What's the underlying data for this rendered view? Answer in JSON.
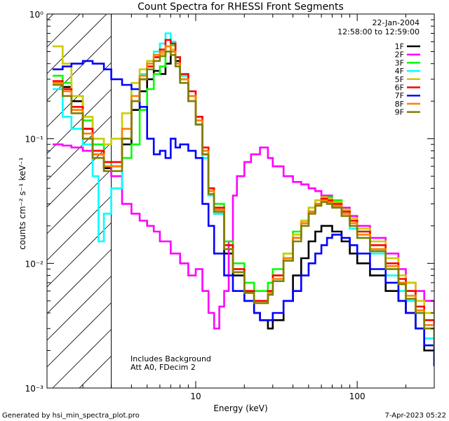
{
  "chart_data": {
    "type": "line",
    "title": "Count Spectra for RHESSI Front Segments",
    "xlabel": "Energy (keV)",
    "ylabel": "counts cm⁻² s⁻¹ keV⁻¹",
    "xscale": "log",
    "yscale": "log",
    "xlim": [
      1.2,
      300
    ],
    "ylim": [
      0.001,
      1
    ],
    "xticks": [
      {
        "value": 10,
        "label": "10"
      },
      {
        "value": 100,
        "label": "100"
      }
    ],
    "yticks": [
      {
        "value": 1,
        "label": "10⁰"
      },
      {
        "value": 0.1,
        "label": "10⁻¹"
      },
      {
        "value": 0.01,
        "label": "10⁻²"
      },
      {
        "value": 0.001,
        "label": "10⁻³"
      }
    ],
    "date_text": "22-Jan-2004",
    "time_text": "12:58:00 to 12:59:00",
    "shaded_region_keV": [
      1.2,
      3
    ],
    "annotations": [
      "Includes Background",
      "Att A0, FDecim 2"
    ],
    "series": [
      {
        "name": "1F",
        "color": "#000000",
        "x": [
          1.3,
          1.5,
          1.7,
          2.0,
          2.3,
          2.7,
          3.0,
          3.5,
          4.0,
          4.5,
          5.0,
          5.5,
          6.0,
          6.5,
          7.0,
          7.5,
          8.0,
          9.0,
          10,
          11,
          12,
          13,
          15,
          17,
          20,
          23,
          25,
          28,
          30,
          35,
          40,
          45,
          50,
          55,
          60,
          65,
          70,
          80,
          90,
          100,
          120,
          150,
          180,
          200,
          230,
          260,
          300
        ],
        "y": [
          0.28,
          0.26,
          0.2,
          0.12,
          0.075,
          0.058,
          0.06,
          0.09,
          0.17,
          0.24,
          0.3,
          0.35,
          0.33,
          0.4,
          0.5,
          0.42,
          0.3,
          0.2,
          0.13,
          0.075,
          0.035,
          0.025,
          0.012,
          0.008,
          0.005,
          0.004,
          0.0035,
          0.003,
          0.0035,
          0.005,
          0.008,
          0.011,
          0.015,
          0.018,
          0.02,
          0.02,
          0.018,
          0.015,
          0.012,
          0.01,
          0.008,
          0.006,
          0.005,
          0.004,
          0.003,
          0.002,
          0.0015
        ]
      },
      {
        "name": "2F",
        "color": "#ff00ff",
        "x": [
          1.3,
          1.5,
          1.7,
          2.0,
          2.3,
          2.7,
          3.0,
          3.5,
          4.0,
          4.5,
          5.0,
          5.5,
          6.0,
          7.0,
          8.0,
          9.0,
          10,
          11,
          12,
          13,
          14,
          15,
          16,
          17,
          18,
          20,
          22,
          25,
          28,
          30,
          35,
          40,
          45,
          50,
          55,
          60,
          70,
          80,
          90,
          100,
          120,
          150,
          180,
          200,
          230,
          260,
          300
        ],
        "y": [
          0.09,
          0.088,
          0.085,
          0.08,
          0.07,
          0.06,
          0.05,
          0.03,
          0.025,
          0.022,
          0.02,
          0.018,
          0.015,
          0.012,
          0.01,
          0.008,
          0.009,
          0.006,
          0.004,
          0.003,
          0.0045,
          0.006,
          0.015,
          0.035,
          0.05,
          0.065,
          0.075,
          0.085,
          0.07,
          0.06,
          0.05,
          0.045,
          0.043,
          0.04,
          0.038,
          0.035,
          0.032,
          0.028,
          0.024,
          0.02,
          0.016,
          0.012,
          0.009,
          0.007,
          0.006,
          0.005,
          0.004
        ]
      },
      {
        "name": "3F",
        "color": "#00ff00",
        "x": [
          1.3,
          1.5,
          1.7,
          2.0,
          2.3,
          2.7,
          3.0,
          3.5,
          4.0,
          4.5,
          5.0,
          5.5,
          6.0,
          6.5,
          7.0,
          7.5,
          8.0,
          9.0,
          10,
          11,
          12,
          13,
          15,
          17,
          20,
          23,
          25,
          28,
          30,
          35,
          40,
          45,
          50,
          55,
          60,
          65,
          70,
          80,
          90,
          100,
          120,
          150,
          180,
          200,
          230,
          260,
          300
        ],
        "y": [
          0.32,
          0.28,
          0.22,
          0.14,
          0.09,
          0.065,
          0.06,
          0.07,
          0.09,
          0.17,
          0.25,
          0.33,
          0.38,
          0.5,
          0.56,
          0.45,
          0.32,
          0.22,
          0.14,
          0.08,
          0.04,
          0.03,
          0.015,
          0.01,
          0.007,
          0.006,
          0.006,
          0.007,
          0.009,
          0.012,
          0.018,
          0.022,
          0.028,
          0.032,
          0.034,
          0.034,
          0.032,
          0.027,
          0.022,
          0.018,
          0.013,
          0.009,
          0.007,
          0.006,
          0.004,
          0.003,
          0.002
        ]
      },
      {
        "name": "4F",
        "color": "#00ffff",
        "x": [
          1.3,
          1.5,
          1.7,
          2.0,
          2.3,
          2.5,
          2.7,
          3.0,
          3.5,
          4.0,
          4.5,
          5.0,
          5.5,
          6.0,
          6.5,
          7.0,
          7.5,
          8.0,
          9.0,
          10,
          11,
          12,
          13,
          15,
          17,
          20,
          23,
          25,
          28,
          30,
          35,
          40,
          45,
          50,
          55,
          60,
          65,
          70,
          80,
          90,
          100,
          120,
          150,
          180,
          200,
          230,
          260,
          300
        ],
        "y": [
          0.25,
          0.15,
          0.12,
          0.09,
          0.05,
          0.015,
          0.025,
          0.04,
          0.1,
          0.25,
          0.33,
          0.42,
          0.5,
          0.58,
          0.7,
          0.6,
          0.45,
          0.32,
          0.2,
          0.13,
          0.07,
          0.035,
          0.025,
          0.013,
          0.009,
          0.006,
          0.005,
          0.005,
          0.006,
          0.008,
          0.011,
          0.016,
          0.02,
          0.026,
          0.03,
          0.032,
          0.03,
          0.028,
          0.024,
          0.019,
          0.016,
          0.012,
          0.008,
          0.006,
          0.005,
          0.004,
          0.0025,
          0.0018
        ]
      },
      {
        "name": "5F",
        "color": "#cccc00",
        "x": [
          1.3,
          1.5,
          1.7,
          2.0,
          2.3,
          2.7,
          3.0,
          3.5,
          4.0,
          4.5,
          5.0,
          5.5,
          6.0,
          6.5,
          7.0,
          7.5,
          8.0,
          9.0,
          10,
          11,
          12,
          13,
          15,
          17,
          20,
          23,
          25,
          28,
          30,
          35,
          40,
          45,
          50,
          55,
          60,
          65,
          70,
          80,
          90,
          100,
          120,
          150,
          180,
          200,
          230,
          260,
          300
        ],
        "y": [
          0.55,
          0.4,
          0.22,
          0.15,
          0.1,
          0.09,
          0.1,
          0.16,
          0.28,
          0.36,
          0.42,
          0.45,
          0.48,
          0.55,
          0.52,
          0.4,
          0.3,
          0.22,
          0.15,
          0.08,
          0.04,
          0.028,
          0.014,
          0.009,
          0.006,
          0.005,
          0.005,
          0.006,
          0.008,
          0.012,
          0.017,
          0.022,
          0.028,
          0.032,
          0.034,
          0.033,
          0.031,
          0.027,
          0.023,
          0.019,
          0.015,
          0.011,
          0.008,
          0.007,
          0.005,
          0.004,
          0.003
        ]
      },
      {
        "name": "6F",
        "color": "#ff0000",
        "x": [
          1.3,
          1.5,
          1.7,
          2.0,
          2.3,
          2.7,
          3.0,
          3.5,
          4.0,
          4.5,
          5.0,
          5.5,
          6.0,
          6.5,
          7.0,
          7.5,
          8.0,
          9.0,
          10,
          11,
          12,
          13,
          15,
          17,
          20,
          23,
          25,
          28,
          30,
          35,
          40,
          45,
          50,
          55,
          60,
          65,
          70,
          80,
          90,
          100,
          120,
          150,
          180,
          200,
          230,
          260,
          300
        ],
        "y": [
          0.29,
          0.25,
          0.18,
          0.12,
          0.08,
          0.065,
          0.065,
          0.1,
          0.2,
          0.3,
          0.38,
          0.45,
          0.52,
          0.62,
          0.58,
          0.45,
          0.33,
          0.24,
          0.15,
          0.085,
          0.04,
          0.028,
          0.014,
          0.009,
          0.006,
          0.005,
          0.005,
          0.006,
          0.008,
          0.011,
          0.016,
          0.021,
          0.026,
          0.03,
          0.033,
          0.032,
          0.03,
          0.026,
          0.022,
          0.018,
          0.014,
          0.01,
          0.0075,
          0.006,
          0.0045,
          0.0035,
          0.0025
        ]
      },
      {
        "name": "7F",
        "color": "#0000ff",
        "x": [
          1.3,
          1.5,
          1.7,
          2.0,
          2.3,
          2.7,
          3.0,
          3.5,
          4.0,
          4.5,
          5.0,
          5.5,
          6.0,
          6.5,
          7.0,
          7.5,
          8.0,
          9.0,
          10,
          11,
          12,
          13,
          15,
          17,
          20,
          23,
          25,
          28,
          30,
          35,
          40,
          45,
          50,
          55,
          60,
          65,
          70,
          80,
          90,
          100,
          120,
          150,
          180,
          200,
          230,
          260,
          300
        ],
        "y": [
          0.36,
          0.38,
          0.4,
          0.42,
          0.4,
          0.36,
          0.3,
          0.27,
          0.25,
          0.18,
          0.1,
          0.075,
          0.08,
          0.07,
          0.1,
          0.085,
          0.09,
          0.08,
          0.07,
          0.03,
          0.02,
          0.012,
          0.008,
          0.006,
          0.005,
          0.004,
          0.0035,
          0.0035,
          0.004,
          0.005,
          0.006,
          0.008,
          0.01,
          0.012,
          0.014,
          0.016,
          0.017,
          0.016,
          0.014,
          0.012,
          0.009,
          0.007,
          0.005,
          0.004,
          0.003,
          0.0022,
          0.0015
        ]
      },
      {
        "name": "8F",
        "color": "#ff8000",
        "x": [
          1.3,
          1.5,
          1.7,
          2.0,
          2.3,
          2.7,
          3.0,
          3.5,
          4.0,
          4.5,
          5.0,
          5.5,
          6.0,
          6.5,
          7.0,
          7.5,
          8.0,
          9.0,
          10,
          11,
          12,
          13,
          15,
          17,
          20,
          23,
          25,
          28,
          30,
          35,
          40,
          45,
          50,
          55,
          60,
          65,
          70,
          80,
          90,
          100,
          120,
          150,
          180,
          200,
          230,
          260,
          300
        ],
        "y": [
          0.28,
          0.24,
          0.17,
          0.11,
          0.075,
          0.06,
          0.06,
          0.12,
          0.22,
          0.32,
          0.4,
          0.47,
          0.5,
          0.55,
          0.5,
          0.4,
          0.3,
          0.22,
          0.14,
          0.08,
          0.038,
          0.027,
          0.013,
          0.0085,
          0.0058,
          0.0048,
          0.0048,
          0.0058,
          0.0075,
          0.011,
          0.016,
          0.021,
          0.026,
          0.03,
          0.032,
          0.031,
          0.029,
          0.025,
          0.021,
          0.017,
          0.013,
          0.0095,
          0.007,
          0.0055,
          0.0042,
          0.0032,
          0.0022
        ]
      },
      {
        "name": "9F",
        "color": "#808000",
        "x": [
          1.3,
          1.5,
          1.7,
          2.0,
          2.3,
          2.7,
          3.0,
          3.5,
          4.0,
          4.5,
          5.0,
          5.5,
          6.0,
          6.5,
          7.0,
          7.5,
          8.0,
          9.0,
          10,
          11,
          12,
          13,
          15,
          17,
          20,
          23,
          25,
          28,
          30,
          35,
          40,
          45,
          50,
          55,
          60,
          65,
          70,
          80,
          90,
          100,
          120,
          150,
          180,
          200,
          230,
          260,
          300
        ],
        "y": [
          0.27,
          0.22,
          0.16,
          0.1,
          0.07,
          0.055,
          0.055,
          0.1,
          0.2,
          0.3,
          0.36,
          0.42,
          0.46,
          0.5,
          0.47,
          0.38,
          0.28,
          0.2,
          0.13,
          0.075,
          0.036,
          0.026,
          0.013,
          0.0085,
          0.0058,
          0.0048,
          0.0048,
          0.0056,
          0.0072,
          0.0105,
          0.015,
          0.02,
          0.025,
          0.029,
          0.031,
          0.03,
          0.028,
          0.024,
          0.02,
          0.016,
          0.0125,
          0.009,
          0.0068,
          0.0052,
          0.004,
          0.003,
          0.0021
        ]
      }
    ]
  },
  "footer": {
    "generated_by": "Generated by hsi_min_spectra_plot.pro",
    "date": "7-Apr-2023 05:22"
  }
}
